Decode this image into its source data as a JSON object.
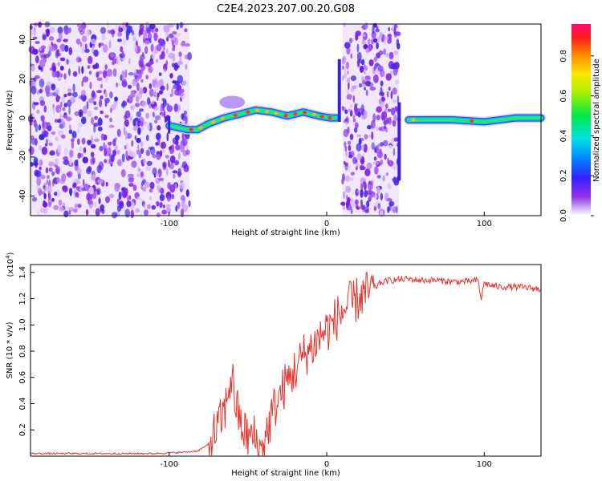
{
  "figure": {
    "title": "C2E4.2023.207.00.20.G08"
  },
  "chart_data": [
    {
      "type": "heatmap",
      "title": "C2E4.2023.207.00.20.G08",
      "xlabel": "Height of straight line (km)",
      "ylabel": "Frequency (Hz)",
      "xlim": [
        -188,
        136
      ],
      "ylim": [
        -50,
        48
      ],
      "xticks": [
        -100,
        0,
        100
      ],
      "yticks": [
        -40,
        -20,
        0,
        20,
        40
      ],
      "colorbar": {
        "label": "Normalized spectral amplitude",
        "range": [
          0.0,
          0.96
        ],
        "ticks": [
          "0.0",
          "0.2",
          "0.4",
          "0.6",
          "0.8"
        ],
        "colormap": "hsv-reversed (magenta at max, blue/violet low, white at 0)"
      },
      "noise_regions_km": [
        [
          -188,
          -87
        ],
        [
          10,
          46
        ]
      ],
      "signal_ridge": {
        "x": [
          -100,
          -88,
          -82,
          -75,
          -65,
          -55,
          -45,
          -35,
          -25,
          -15,
          -5,
          2,
          6,
          52,
          60,
          80,
          100,
          120,
          136
        ],
        "y": [
          -4,
          -6,
          -6,
          -3,
          0,
          2,
          4,
          3,
          1,
          3,
          1,
          0,
          0,
          -1,
          -1,
          -1,
          -2,
          0,
          0
        ]
      }
    },
    {
      "type": "line",
      "xlabel": "Height of straight line (km)",
      "ylabel": "SNR (10 * v/v)",
      "scale_note": "(x10^4)",
      "xlim": [
        -188,
        136
      ],
      "ylim": [
        0,
        1.46
      ],
      "xticks": [
        -100,
        0,
        100
      ],
      "yticks": [
        0.2,
        0.4,
        0.6,
        0.8,
        1.0,
        1.2,
        1.4
      ],
      "color": "#e8322c",
      "series": [
        {
          "x": [
            -188,
            -150,
            -110,
            -90,
            -82,
            -76,
            -72,
            -68,
            -66,
            -64,
            -62,
            -60,
            -58,
            -55,
            -52,
            -50,
            -48,
            -46,
            -44,
            -42,
            -40,
            -37,
            -34,
            -30,
            -26,
            -22,
            -18,
            -14,
            -10,
            -6,
            -2,
            2,
            6,
            10,
            14,
            18,
            22,
            26,
            30,
            34,
            40,
            50,
            60,
            70,
            80,
            90,
            96,
            98,
            100,
            104,
            110,
            120,
            130,
            136
          ],
          "y": [
            0.02,
            0.02,
            0.02,
            0.03,
            0.04,
            0.08,
            0.15,
            0.25,
            0.3,
            0.38,
            0.55,
            0.6,
            0.42,
            0.25,
            0.18,
            0.15,
            0.14,
            0.15,
            0.08,
            0.02,
            0.12,
            0.22,
            0.35,
            0.45,
            0.55,
            0.62,
            0.7,
            0.78,
            0.82,
            0.88,
            0.95,
            0.98,
            1.05,
            1.1,
            1.15,
            1.18,
            1.22,
            1.24,
            1.28,
            1.32,
            1.34,
            1.35,
            1.34,
            1.34,
            1.33,
            1.33,
            1.34,
            1.2,
            1.32,
            1.3,
            1.29,
            1.29,
            1.28,
            1.27
          ]
        }
      ]
    }
  ]
}
